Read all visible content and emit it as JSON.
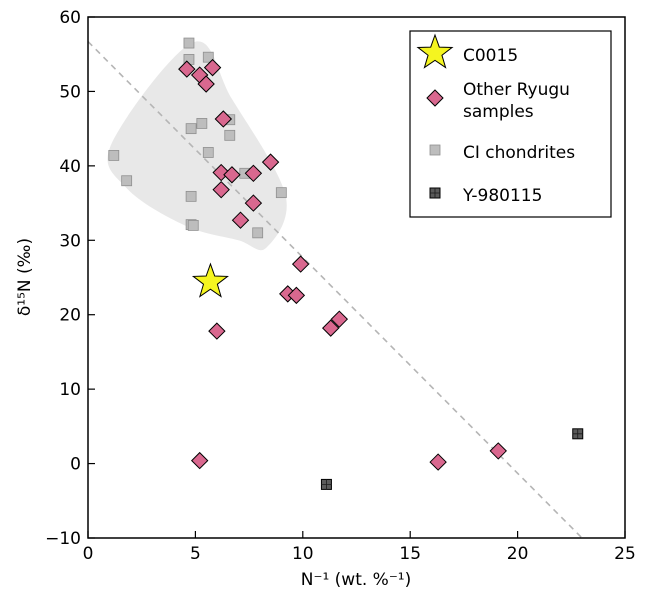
{
  "chart_data": {
    "type": "scatter",
    "xlabel": "N⁻¹ (wt. %⁻¹)",
    "ylabel": "δ¹⁵N (‰)",
    "xlim": [
      0,
      25
    ],
    "ylim": [
      -10,
      60
    ],
    "xticks": [
      0,
      5,
      10,
      15,
      20,
      25
    ],
    "yticks": [
      -10,
      0,
      10,
      20,
      30,
      40,
      50,
      60
    ],
    "xtick_labels": [
      "0",
      "5",
      "10",
      "15",
      "20",
      "25"
    ],
    "ytick_labels": [
      "−10",
      "0",
      "10",
      "20",
      "30",
      "40",
      "50",
      "60"
    ],
    "legend_position": "top-right",
    "trend_line": {
      "style": "dashed",
      "color": "#b5b5b5",
      "x": [
        0.0,
        23.0
      ],
      "y": [
        56.7,
        -10.0
      ]
    },
    "highlight_region": {
      "fill": "#e8e8e8",
      "description_points": [
        [
          4.9,
          56.6
        ],
        [
          1.1,
          43.0
        ],
        [
          1.8,
          37.0
        ],
        [
          4.5,
          32.0
        ],
        [
          7.0,
          30.0
        ],
        [
          8.3,
          29.0
        ],
        [
          9.2,
          36.0
        ],
        [
          6.7,
          49.0
        ]
      ]
    },
    "series": [
      {
        "name": "C0015",
        "marker": "star",
        "color": "#f5f520",
        "edge": "#000000",
        "points": [
          [
            5.7,
            24.4
          ]
        ]
      },
      {
        "name": "Other Ryugu samples",
        "marker": "diamond",
        "color": "#d9688f",
        "edge": "#000000",
        "points": [
          [
            4.6,
            53.0
          ],
          [
            5.2,
            52.2
          ],
          [
            5.5,
            51.0
          ],
          [
            5.8,
            53.2
          ],
          [
            6.3,
            46.3
          ],
          [
            6.2,
            39.1
          ],
          [
            6.7,
            38.8
          ],
          [
            7.7,
            39.0
          ],
          [
            8.5,
            40.5
          ],
          [
            6.2,
            36.8
          ],
          [
            7.7,
            35.0
          ],
          [
            7.1,
            32.7
          ],
          [
            9.9,
            26.8
          ],
          [
            9.3,
            22.8
          ],
          [
            9.7,
            22.6
          ],
          [
            11.7,
            19.4
          ],
          [
            11.3,
            18.2
          ],
          [
            6.0,
            17.8
          ],
          [
            5.2,
            0.4
          ],
          [
            16.3,
            0.2
          ],
          [
            19.1,
            1.7
          ]
        ]
      },
      {
        "name": "CI chondrites",
        "marker": "square",
        "color": "#bdbdbd",
        "edge": "#8f8f8f",
        "points": [
          [
            4.7,
            56.5
          ],
          [
            4.7,
            54.3
          ],
          [
            5.6,
            54.6
          ],
          [
            5.3,
            45.7
          ],
          [
            4.8,
            45.0
          ],
          [
            6.6,
            46.2
          ],
          [
            6.6,
            44.1
          ],
          [
            5.6,
            41.8
          ],
          [
            1.2,
            41.4
          ],
          [
            1.8,
            38.0
          ],
          [
            4.8,
            35.9
          ],
          [
            7.3,
            39.0
          ],
          [
            9.0,
            36.4
          ],
          [
            4.8,
            32.1
          ],
          [
            4.9,
            32.0
          ],
          [
            7.9,
            31.0
          ]
        ]
      },
      {
        "name": "Y-980115",
        "marker": "grid-square",
        "color": "#5a5a5a",
        "edge": "#000000",
        "points": [
          [
            11.1,
            -2.8
          ],
          [
            22.8,
            4.0
          ]
        ]
      }
    ],
    "legend": [
      {
        "label": "C0015",
        "marker": "star"
      },
      {
        "label_lines": [
          "Other Ryugu",
          "samples"
        ],
        "marker": "diamond"
      },
      {
        "label": "CI chondrites",
        "marker": "square"
      },
      {
        "label": "Y-980115",
        "marker": "grid-square"
      }
    ]
  }
}
